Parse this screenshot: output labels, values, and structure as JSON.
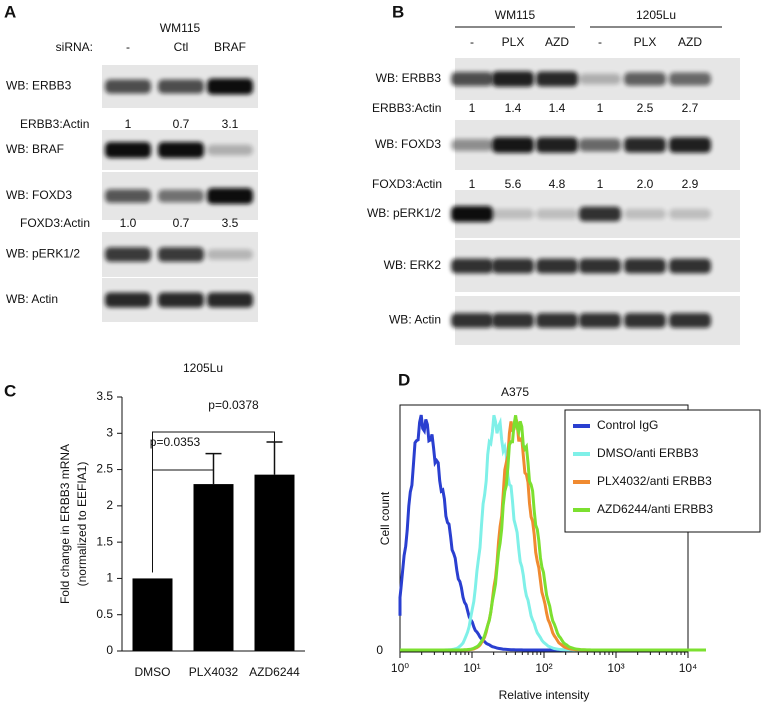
{
  "panel_a": {
    "letter": "A",
    "title": "WM115",
    "lane_header": "siRNA:",
    "lanes": [
      "-",
      "Ctl",
      "BRAF"
    ],
    "blots": [
      "WB: ERBB3",
      "WB: BRAF",
      "WB: FOXD3",
      "WB: pERK1/2",
      "WB: Actin"
    ],
    "quantifications": [
      {
        "label": "ERBB3:Actin",
        "values": [
          "1",
          "0.7",
          "3.1"
        ]
      },
      {
        "label": "FOXD3:Actin",
        "values": [
          "1.0",
          "0.7",
          "3.5"
        ]
      }
    ]
  },
  "panel_b": {
    "letter": "B",
    "groups": [
      "WM115",
      "1205Lu"
    ],
    "lanes": [
      "-",
      "PLX",
      "AZD",
      "-",
      "PLX",
      "AZD"
    ],
    "blots": [
      "WB: ERBB3",
      "WB: FOXD3",
      "WB: pERK1/2",
      "WB: ERK2",
      "WB: Actin"
    ],
    "quantifications": [
      {
        "label": "ERBB3:Actin",
        "values": [
          "1",
          "1.4",
          "1.4",
          "1",
          "2.5",
          "2.7"
        ]
      },
      {
        "label": "FOXD3:Actin",
        "values": [
          "1",
          "5.6",
          "4.8",
          "1",
          "2.0",
          "2.9"
        ]
      }
    ]
  },
  "chart_data": [
    {
      "type": "bar",
      "letter": "C",
      "title": "1205Lu",
      "ylabel": [
        "Fold change in ERBB3 mRNA",
        "(normalized to EEFIA1)"
      ],
      "categories": [
        "DMSO",
        "PLX4032",
        "AZD6244"
      ],
      "values": [
        1,
        2.3,
        2.43
      ],
      "errors": [
        null,
        0.42,
        0.45
      ],
      "color": "#000000",
      "ylim": [
        0,
        3.5
      ],
      "yticks": [
        0,
        0.5,
        1,
        1.5,
        2,
        2.5,
        3,
        3.5
      ],
      "annotations": [
        "p=0.0353",
        "p=0.0378"
      ]
    },
    {
      "type": "histogram",
      "letter": "D",
      "title": "A375",
      "xlabel": "Relative intensity",
      "ylabel": "Cell count",
      "xscale": "log",
      "xlim": [
        1,
        10000
      ],
      "xticks": [
        {
          "value": 1,
          "label": "10⁰"
        },
        {
          "value": 10,
          "label": "10¹"
        },
        {
          "value": 100,
          "label": "10²"
        },
        {
          "value": 1000,
          "label": "10³"
        },
        {
          "value": 10000,
          "label": "10⁴"
        }
      ],
      "yticks": [
        0
      ],
      "legend": "upper right",
      "series": [
        {
          "name": "Control IgG",
          "color": "#2a3fd0"
        },
        {
          "name": "DMSO/anti ERBB3",
          "color": "#7ff0e8"
        },
        {
          "name": "PLX4032/anti ERBB3",
          "color": "#f08a30"
        },
        {
          "name": "AZD6244/anti ERBB3",
          "color": "#7ce030"
        }
      ]
    }
  ]
}
